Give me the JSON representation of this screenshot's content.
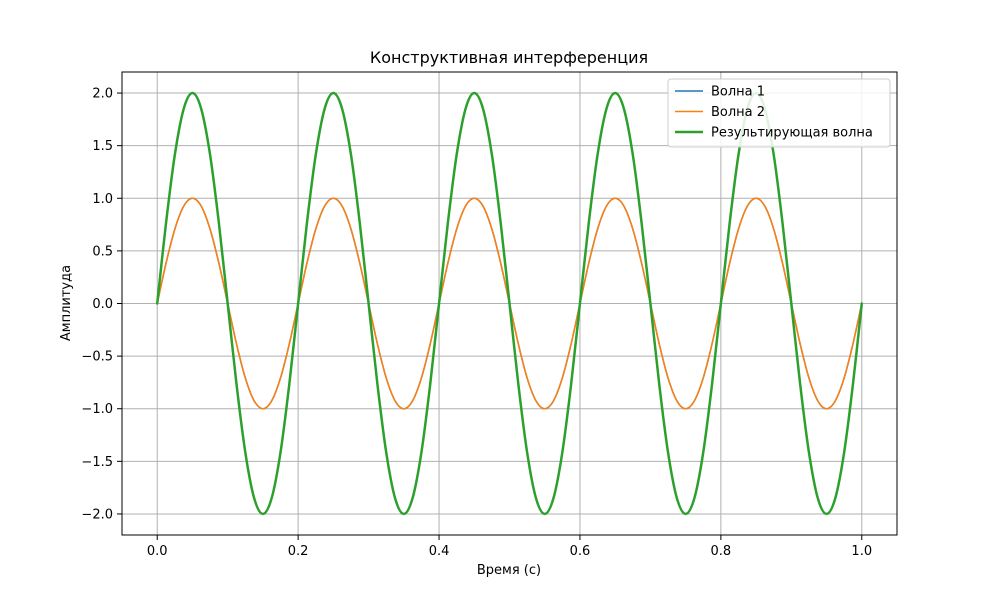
{
  "chart_data": {
    "type": "line",
    "title": "Конструктивная интерференция",
    "xlabel": "Время (с)",
    "ylabel": "Амплитуда",
    "xlim": [
      -0.05,
      1.05
    ],
    "ylim": [
      -2.2,
      2.2
    ],
    "xticks": [
      0.0,
      0.2,
      0.4,
      0.6,
      0.8,
      1.0
    ],
    "xtick_labels": [
      "0.0",
      "0.2",
      "0.4",
      "0.6",
      "0.8",
      "1.0"
    ],
    "yticks": [
      -2.0,
      -1.5,
      -1.0,
      -0.5,
      0.0,
      0.5,
      1.0,
      1.5,
      2.0
    ],
    "ytick_labels": [
      "−2.0",
      "−1.5",
      "−1.0",
      "−0.5",
      "0.0",
      "0.5",
      "1.0",
      "1.5",
      "2.0"
    ],
    "grid": true,
    "legend_position": "top-right",
    "series": [
      {
        "name": "Волна 1",
        "color": "#1f77b4",
        "linewidth": 1.5,
        "x": [
          0.0,
          0.0125,
          0.025,
          0.0375,
          0.05,
          0.0625,
          0.075,
          0.0875,
          0.1,
          0.1125,
          0.125,
          0.1375,
          0.15,
          0.1625,
          0.175,
          0.1875,
          0.2,
          0.2125,
          0.225,
          0.2375,
          0.25,
          0.2625,
          0.275,
          0.2875,
          0.3,
          0.3125,
          0.325,
          0.3375,
          0.35,
          0.3625,
          0.375,
          0.3875,
          0.4,
          0.4125,
          0.425,
          0.4375,
          0.45,
          0.4625,
          0.475,
          0.4875,
          0.5,
          0.5125,
          0.525,
          0.5375,
          0.55,
          0.5625,
          0.575,
          0.5875,
          0.6,
          0.6125,
          0.625,
          0.6375,
          0.65,
          0.6625,
          0.675,
          0.6875,
          0.7,
          0.7125,
          0.725,
          0.7375,
          0.75,
          0.7625,
          0.775,
          0.7875,
          0.8,
          0.8125,
          0.825,
          0.8375,
          0.85,
          0.8625,
          0.875,
          0.8875,
          0.9,
          0.9125,
          0.925,
          0.9375,
          0.95,
          0.9625,
          0.975,
          0.9875,
          1.0
        ],
        "y": [
          0.0,
          0.383,
          0.707,
          0.924,
          1.0,
          0.924,
          0.707,
          0.383,
          0.0,
          -0.383,
          -0.707,
          -0.924,
          -1.0,
          -0.924,
          -0.707,
          -0.383,
          0.0,
          0.383,
          0.707,
          0.924,
          1.0,
          0.924,
          0.707,
          0.383,
          0.0,
          -0.383,
          -0.707,
          -0.924,
          -1.0,
          -0.924,
          -0.707,
          -0.383,
          0.0,
          0.383,
          0.707,
          0.924,
          1.0,
          0.924,
          0.707,
          0.383,
          0.0,
          -0.383,
          -0.707,
          -0.924,
          -1.0,
          -0.924,
          -0.707,
          -0.383,
          0.0,
          0.383,
          0.707,
          0.924,
          1.0,
          0.924,
          0.707,
          0.383,
          0.0,
          -0.383,
          -0.707,
          -0.924,
          -1.0,
          -0.924,
          -0.707,
          -0.383,
          0.0,
          0.383,
          0.707,
          0.924,
          1.0,
          0.924,
          0.707,
          0.383,
          0.0,
          -0.383,
          -0.707,
          -0.924,
          -1.0,
          -0.924,
          -0.707,
          -0.383,
          0.0
        ]
      },
      {
        "name": "Волна 2",
        "color": "#ff7f0e",
        "linewidth": 1.5,
        "x": [
          0.0,
          0.0125,
          0.025,
          0.0375,
          0.05,
          0.0625,
          0.075,
          0.0875,
          0.1,
          0.1125,
          0.125,
          0.1375,
          0.15,
          0.1625,
          0.175,
          0.1875,
          0.2,
          0.2125,
          0.225,
          0.2375,
          0.25,
          0.2625,
          0.275,
          0.2875,
          0.3,
          0.3125,
          0.325,
          0.3375,
          0.35,
          0.3625,
          0.375,
          0.3875,
          0.4,
          0.4125,
          0.425,
          0.4375,
          0.45,
          0.4625,
          0.475,
          0.4875,
          0.5,
          0.5125,
          0.525,
          0.5375,
          0.55,
          0.5625,
          0.575,
          0.5875,
          0.6,
          0.6125,
          0.625,
          0.6375,
          0.65,
          0.6625,
          0.675,
          0.6875,
          0.7,
          0.7125,
          0.725,
          0.7375,
          0.75,
          0.7625,
          0.775,
          0.7875,
          0.8,
          0.8125,
          0.825,
          0.8375,
          0.85,
          0.8625,
          0.875,
          0.8875,
          0.9,
          0.9125,
          0.925,
          0.9375,
          0.95,
          0.9625,
          0.975,
          0.9875,
          1.0
        ],
        "y": [
          0.0,
          0.383,
          0.707,
          0.924,
          1.0,
          0.924,
          0.707,
          0.383,
          0.0,
          -0.383,
          -0.707,
          -0.924,
          -1.0,
          -0.924,
          -0.707,
          -0.383,
          0.0,
          0.383,
          0.707,
          0.924,
          1.0,
          0.924,
          0.707,
          0.383,
          0.0,
          -0.383,
          -0.707,
          -0.924,
          -1.0,
          -0.924,
          -0.707,
          -0.383,
          0.0,
          0.383,
          0.707,
          0.924,
          1.0,
          0.924,
          0.707,
          0.383,
          0.0,
          -0.383,
          -0.707,
          -0.924,
          -1.0,
          -0.924,
          -0.707,
          -0.383,
          0.0,
          0.383,
          0.707,
          0.924,
          1.0,
          0.924,
          0.707,
          0.383,
          0.0,
          -0.383,
          -0.707,
          -0.924,
          -1.0,
          -0.924,
          -0.707,
          -0.383,
          0.0,
          0.383,
          0.707,
          0.924,
          1.0,
          0.924,
          0.707,
          0.383,
          0.0,
          -0.383,
          -0.707,
          -0.924,
          -1.0,
          -0.924,
          -0.707,
          -0.383,
          0.0
        ]
      },
      {
        "name": "Результирующая волна",
        "color": "#2ca02c",
        "linewidth": 2.5,
        "x": [
          0.0,
          0.0125,
          0.025,
          0.0375,
          0.05,
          0.0625,
          0.075,
          0.0875,
          0.1,
          0.1125,
          0.125,
          0.1375,
          0.15,
          0.1625,
          0.175,
          0.1875,
          0.2,
          0.2125,
          0.225,
          0.2375,
          0.25,
          0.2625,
          0.275,
          0.2875,
          0.3,
          0.3125,
          0.325,
          0.3375,
          0.35,
          0.3625,
          0.375,
          0.3875,
          0.4,
          0.4125,
          0.425,
          0.4375,
          0.45,
          0.4625,
          0.475,
          0.4875,
          0.5,
          0.5125,
          0.525,
          0.5375,
          0.55,
          0.5625,
          0.575,
          0.5875,
          0.6,
          0.6125,
          0.625,
          0.6375,
          0.65,
          0.6625,
          0.675,
          0.6875,
          0.7,
          0.7125,
          0.725,
          0.7375,
          0.75,
          0.7625,
          0.775,
          0.7875,
          0.8,
          0.8125,
          0.825,
          0.8375,
          0.85,
          0.8625,
          0.875,
          0.8875,
          0.9,
          0.9125,
          0.925,
          0.9375,
          0.95,
          0.9625,
          0.975,
          0.9875,
          1.0
        ],
        "y": [
          0.0,
          0.765,
          1.414,
          1.848,
          2.0,
          1.848,
          1.414,
          0.765,
          0.0,
          -0.765,
          -1.414,
          -1.848,
          -2.0,
          -1.848,
          -1.414,
          -0.765,
          0.0,
          0.765,
          1.414,
          1.848,
          2.0,
          1.848,
          1.414,
          0.765,
          0.0,
          -0.765,
          -1.414,
          -1.848,
          -2.0,
          -1.848,
          -1.414,
          -0.765,
          0.0,
          0.765,
          1.414,
          1.848,
          2.0,
          1.848,
          1.414,
          0.765,
          0.0,
          -0.765,
          -1.414,
          -1.848,
          -2.0,
          -1.848,
          -1.414,
          -0.765,
          0.0,
          0.765,
          1.414,
          1.848,
          2.0,
          1.848,
          1.414,
          0.765,
          0.0,
          -0.765,
          -1.414,
          -1.848,
          -2.0,
          -1.848,
          -1.414,
          -0.765,
          0.0,
          0.765,
          1.414,
          1.848,
          2.0,
          1.848,
          1.414,
          0.765,
          0.0,
          -0.765,
          -1.414,
          -1.848,
          -2.0,
          -1.848,
          -1.414,
          -0.765,
          0.0
        ]
      }
    ]
  },
  "colors": {
    "grid": "#b0b0b0",
    "axes": "#000000",
    "legend_border": "#cccccc"
  }
}
